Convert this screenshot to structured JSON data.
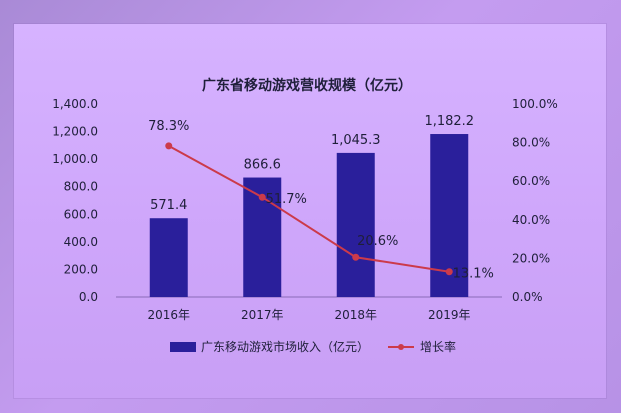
{
  "chart_data": {
    "type": "bar+line",
    "title": "广东省移动游戏营收规模（亿元）",
    "categories": [
      "2016年",
      "2017年",
      "2018年",
      "2019年"
    ],
    "series": [
      {
        "name": "广东移动游戏市场收入（亿元）",
        "type": "bar",
        "axis": "left",
        "values": [
          571.4,
          866.6,
          1045.3,
          1182.2
        ],
        "labels": [
          "571.4",
          "866.6",
          "1,045.3",
          "1,182.2"
        ],
        "color": "#2a1f9b"
      },
      {
        "name": "增长率",
        "type": "line",
        "axis": "right",
        "values": [
          78.3,
          51.7,
          20.6,
          13.1
        ],
        "labels": [
          "78.3%",
          "51.7%",
          "20.6%",
          "13.1%"
        ],
        "color": "#cc3a4a"
      }
    ],
    "y_left": {
      "ylim": [
        0,
        1400
      ],
      "ticks": [
        "0.0",
        "200.0",
        "400.0",
        "600.0",
        "800.0",
        "1,000.0",
        "1,200.0",
        "1,400.0"
      ]
    },
    "y_right": {
      "ylim": [
        0,
        100
      ],
      "ticks": [
        "0.0%",
        "20.0%",
        "40.0%",
        "60.0%",
        "80.0%",
        "100.0%"
      ]
    },
    "grid": false,
    "legend_position": "bottom"
  }
}
